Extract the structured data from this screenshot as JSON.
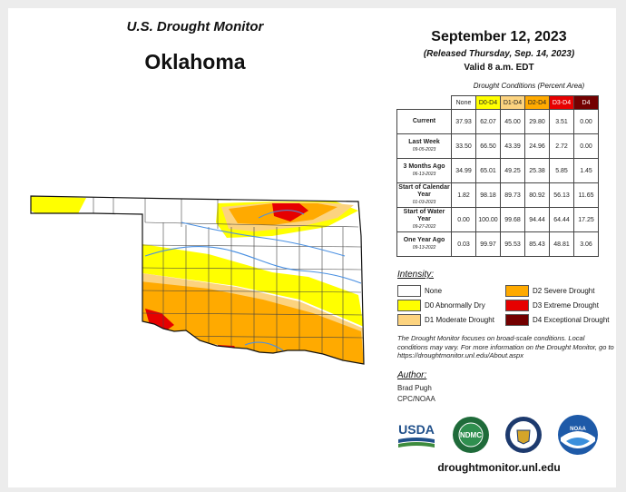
{
  "header": {
    "program": "U.S. Drought Monitor",
    "state": "Oklahoma",
    "date": "September 12, 2023",
    "released": "(Released Thursday, Sep. 14, 2023)",
    "valid": "Valid 8 a.m. EDT"
  },
  "conditions": {
    "title": "Drought Conditions (Percent Area)",
    "columns": [
      {
        "label": "None",
        "color": "#ffffff"
      },
      {
        "label": "D0-D4",
        "color": "#ffff00"
      },
      {
        "label": "D1-D4",
        "color": "#fcd37f"
      },
      {
        "label": "D2-D4",
        "color": "#ffaa00"
      },
      {
        "label": "D3-D4",
        "color": "#e60000"
      },
      {
        "label": "D4",
        "color": "#730000"
      }
    ],
    "rows": [
      {
        "label": "Current",
        "sub": "",
        "values": [
          "37.93",
          "62.07",
          "45.00",
          "29.80",
          "3.51",
          "0.00"
        ]
      },
      {
        "label": "Last Week",
        "sub": "09-05-2023",
        "values": [
          "33.50",
          "66.50",
          "43.39",
          "24.96",
          "2.72",
          "0.00"
        ]
      },
      {
        "label": "3 Months Ago",
        "sub": "06-13-2023",
        "values": [
          "34.99",
          "65.01",
          "49.25",
          "25.38",
          "5.85",
          "1.45"
        ]
      },
      {
        "label": "Start of Calendar Year",
        "sub": "01-03-2023",
        "values": [
          "1.82",
          "98.18",
          "89.73",
          "80.92",
          "56.13",
          "11.65"
        ]
      },
      {
        "label": "Start of Water Year",
        "sub": "09-27-2022",
        "values": [
          "0.00",
          "100.00",
          "99.68",
          "94.44",
          "64.44",
          "17.25"
        ]
      },
      {
        "label": "One Year Ago",
        "sub": "09-13-2022",
        "values": [
          "0.03",
          "99.97",
          "95.53",
          "85.43",
          "48.81",
          "3.06"
        ]
      }
    ]
  },
  "legend": {
    "title": "Intensity:",
    "items": [
      {
        "label": "None",
        "color": "#ffffff"
      },
      {
        "label": "D2 Severe Drought",
        "color": "#ffaa00"
      },
      {
        "label": "D0 Abnormally Dry",
        "color": "#ffff00"
      },
      {
        "label": "D3 Extreme Drought",
        "color": "#e60000"
      },
      {
        "label": "D1 Moderate Drought",
        "color": "#fcd37f"
      },
      {
        "label": "D4 Exceptional Drought",
        "color": "#730000"
      }
    ]
  },
  "note": "The Drought Monitor focuses on broad-scale conditions. Local conditions may vary. For more information on the Drought Monitor, go to https://droughtmonitor.unl.edu/About.aspx",
  "author": {
    "heading": "Author:",
    "name": "Brad Pugh",
    "org": "CPC/NOAA"
  },
  "logos": {
    "usda": "USDA",
    "ndmc": "NDMC",
    "noaa": "NOAA"
  },
  "url": "droughtmonitor.unl.edu"
}
